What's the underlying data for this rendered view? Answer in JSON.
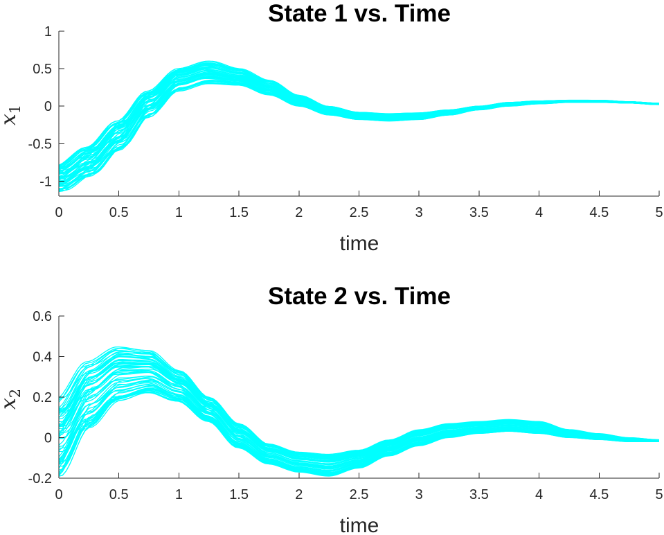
{
  "chart_data": [
    {
      "type": "line",
      "title": "State 1 vs. Time",
      "xlabel": "time",
      "ylabel": "x",
      "ylabel_sub": "1",
      "xlim": [
        0,
        5
      ],
      "ylim": [
        -1.2,
        1
      ],
      "x_ticks": [
        0,
        0.5,
        1,
        1.5,
        2,
        2.5,
        3,
        3.5,
        4,
        4.5,
        5
      ],
      "x_tick_labels": [
        "0",
        "0.5",
        "1",
        "1.5",
        "2",
        "2.5",
        "3",
        "3.5",
        "4",
        "4.5",
        "5"
      ],
      "y_ticks": [
        -1,
        -0.5,
        0,
        0.5,
        1
      ],
      "y_tick_labels": [
        "-1",
        "-0.5",
        "0",
        "0.5",
        "1"
      ],
      "grid": false,
      "color": "#00FFFF",
      "x": [
        0,
        0.25,
        0.5,
        0.75,
        1,
        1.25,
        1.5,
        1.75,
        2,
        2.25,
        2.5,
        2.75,
        3,
        3.25,
        3.5,
        3.75,
        4,
        4.25,
        4.5,
        4.75,
        5
      ],
      "envelope_lower": [
        -1.15,
        -0.95,
        -0.6,
        -0.15,
        0.2,
        0.3,
        0.28,
        0.15,
        0.0,
        -0.12,
        -0.18,
        -0.2,
        -0.18,
        -0.12,
        -0.05,
        0.0,
        0.03,
        0.05,
        0.05,
        0.04,
        0.02
      ],
      "envelope_upper": [
        -0.8,
        -0.55,
        -0.2,
        0.2,
        0.5,
        0.6,
        0.5,
        0.35,
        0.15,
        0.0,
        -0.08,
        -0.1,
        -0.09,
        -0.05,
        0.0,
        0.05,
        0.07,
        0.08,
        0.08,
        0.06,
        0.04
      ]
    },
    {
      "type": "line",
      "title": "State 2 vs. Time",
      "xlabel": "time",
      "ylabel": "x",
      "ylabel_sub": "2",
      "xlim": [
        0,
        5
      ],
      "ylim": [
        -0.2,
        0.6
      ],
      "x_ticks": [
        0,
        0.5,
        1,
        1.5,
        2,
        2.5,
        3,
        3.5,
        4,
        4.5,
        5
      ],
      "x_tick_labels": [
        "0",
        "0.5",
        "1",
        "1.5",
        "2",
        "2.5",
        "3",
        "3.5",
        "4",
        "4.5",
        "5"
      ],
      "y_ticks": [
        -0.2,
        0,
        0.2,
        0.4,
        0.6
      ],
      "y_tick_labels": [
        "-0.2",
        "0",
        "0.2",
        "0.4",
        "0.6"
      ],
      "grid": false,
      "color": "#00FFFF",
      "x": [
        0,
        0.25,
        0.5,
        0.75,
        1,
        1.25,
        1.5,
        1.75,
        2,
        2.25,
        2.5,
        2.75,
        3,
        3.25,
        3.5,
        3.75,
        4,
        4.25,
        4.5,
        4.75,
        5
      ],
      "envelope_lower": [
        -0.19,
        0.05,
        0.18,
        0.22,
        0.18,
        0.08,
        -0.05,
        -0.13,
        -0.17,
        -0.19,
        -0.15,
        -0.09,
        -0.04,
        0.0,
        0.02,
        0.03,
        0.02,
        0.0,
        -0.01,
        -0.02,
        -0.02
      ],
      "envelope_upper": [
        0.2,
        0.38,
        0.45,
        0.43,
        0.33,
        0.2,
        0.07,
        -0.03,
        -0.07,
        -0.08,
        -0.06,
        -0.01,
        0.04,
        0.07,
        0.08,
        0.09,
        0.08,
        0.04,
        0.02,
        0.0,
        -0.01
      ]
    }
  ]
}
